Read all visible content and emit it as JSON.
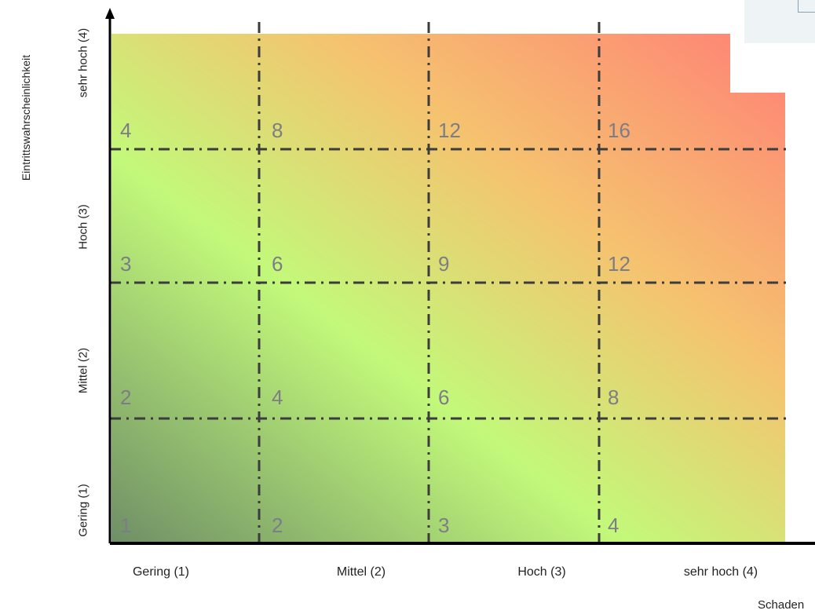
{
  "chart_data": {
    "type": "heatmap",
    "title": "",
    "xlabel": "Schaden",
    "ylabel": "Eintrittswahrscheinlichkeit",
    "x_categories": [
      "Gering (1)",
      "Mittel (2)",
      "Hoch (3)",
      "sehr hoch (4)"
    ],
    "y_categories": [
      "Gering (1)",
      "Mittel (2)",
      "Hoch (3)",
      "sehr hoch (4)"
    ],
    "cells": [
      {
        "x": 1,
        "y": 1,
        "value": 1
      },
      {
        "x": 2,
        "y": 1,
        "value": 2
      },
      {
        "x": 3,
        "y": 1,
        "value": 3
      },
      {
        "x": 4,
        "y": 1,
        "value": 4
      },
      {
        "x": 1,
        "y": 2,
        "value": 2
      },
      {
        "x": 2,
        "y": 2,
        "value": 4
      },
      {
        "x": 3,
        "y": 2,
        "value": 6
      },
      {
        "x": 4,
        "y": 2,
        "value": 8
      },
      {
        "x": 1,
        "y": 3,
        "value": 3
      },
      {
        "x": 2,
        "y": 3,
        "value": 6
      },
      {
        "x": 3,
        "y": 3,
        "value": 9
      },
      {
        "x": 4,
        "y": 3,
        "value": 12
      },
      {
        "x": 1,
        "y": 4,
        "value": 4
      },
      {
        "x": 2,
        "y": 4,
        "value": 8
      },
      {
        "x": 3,
        "y": 4,
        "value": 12
      },
      {
        "x": 4,
        "y": 4,
        "value": 16
      }
    ],
    "color_scale": [
      "#6f8f66",
      "#c2f97a",
      "#f5c36f",
      "#ff8076"
    ],
    "grid": true,
    "grid_style": "dash-dot"
  }
}
